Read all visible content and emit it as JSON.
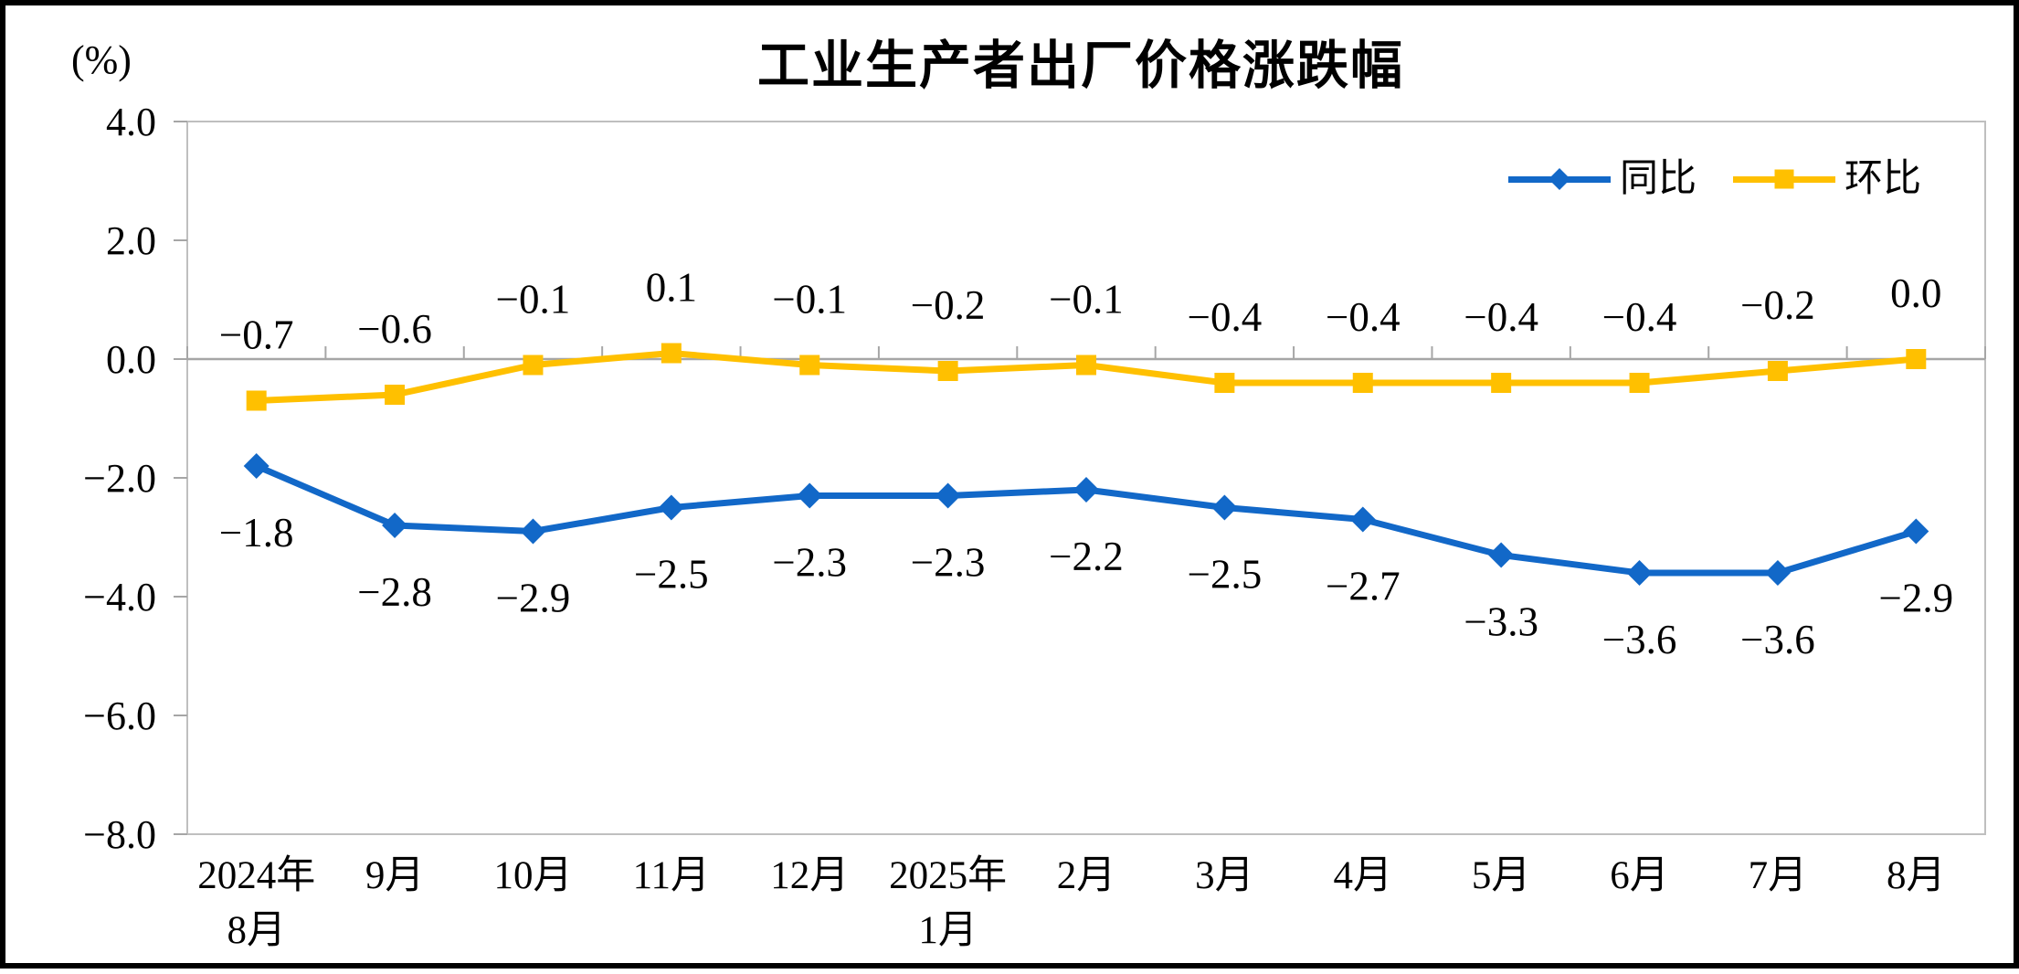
{
  "title": "工业生产者出厂价格涨跌幅",
  "y_axis_unit": "(%)",
  "legend": {
    "yoy_label": "同比",
    "mom_label": "环比"
  },
  "colors": {
    "yoy_blue": "#1268C8",
    "mom_gold": "#FFC000",
    "axis_gray": "#A6A6A6",
    "border_gray": "#BFBFBF",
    "text_black": "#000000"
  },
  "chart_data": {
    "type": "line",
    "title": "工业生产者出厂价格涨跌幅",
    "ylabel": "(%)",
    "xlabel": "",
    "categories": [
      "2024年\n8月",
      "9月",
      "10月",
      "11月",
      "12月",
      "2025年\n1月",
      "2月",
      "3月",
      "4月",
      "5月",
      "6月",
      "7月",
      "8月"
    ],
    "series": [
      {
        "name": "同比",
        "color": "#1268C8",
        "marker": "diamond",
        "label_position": "below",
        "values": [
          -1.8,
          -2.8,
          -2.9,
          -2.5,
          -2.3,
          -2.3,
          -2.2,
          -2.5,
          -2.7,
          -3.3,
          -3.6,
          -3.6,
          -2.9
        ]
      },
      {
        "name": "环比",
        "color": "#FFC000",
        "marker": "square",
        "label_position": "above",
        "values": [
          -0.7,
          -0.6,
          -0.1,
          0.1,
          -0.1,
          -0.2,
          -0.1,
          -0.4,
          -0.4,
          -0.4,
          -0.4,
          -0.2,
          0.0
        ]
      }
    ],
    "ylim": [
      -8.0,
      4.0
    ],
    "ytick_step": 2.0,
    "ytick_labels": [
      "4.0",
      "2.0",
      "0.0",
      "-2.0",
      "-4.0",
      "-6.0",
      "-8.0"
    ],
    "grid": false,
    "zero_axis_line": true,
    "legend_position": "top-right"
  }
}
